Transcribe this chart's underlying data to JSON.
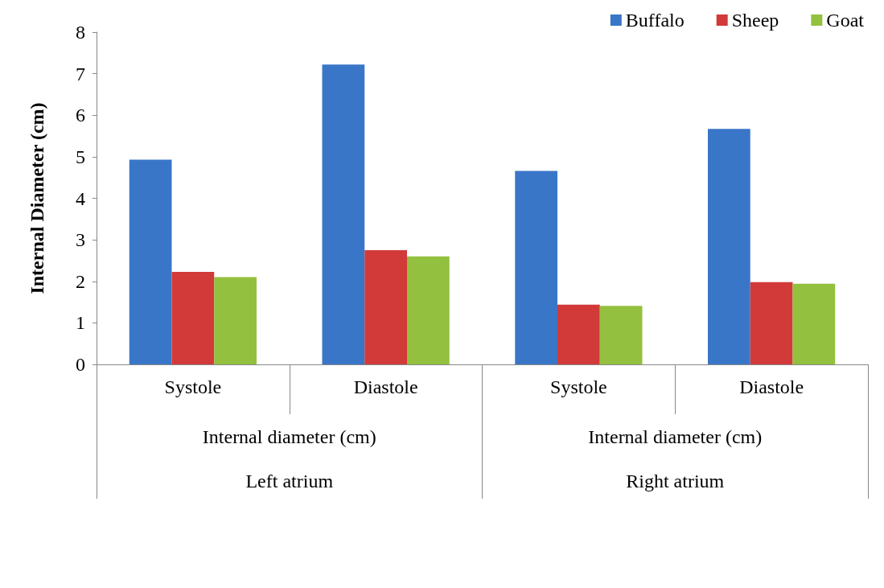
{
  "chart_data": {
    "type": "bar",
    "ylabel": "Internal Diameter (cm)",
    "categories": [
      "Systole",
      "Diastole",
      "Systole",
      "Diastole"
    ],
    "series": [
      {
        "name": "Buffalo",
        "color": "#3a76c8",
        "values": [
          4.93,
          7.22,
          4.66,
          5.67
        ]
      },
      {
        "name": "Sheep",
        "color": "#d23a3a",
        "values": [
          2.23,
          2.75,
          1.44,
          1.98
        ]
      },
      {
        "name": "Goat",
        "color": "#93c03e",
        "values": [
          2.1,
          2.6,
          1.41,
          1.94
        ]
      }
    ],
    "annotations": [
      "Internal diameter (cm)",
      "Internal diameter (cm)",
      "Left atrium",
      "Right atrium"
    ],
    "ylim": [
      0,
      8
    ],
    "yticks": [
      0,
      1,
      2,
      3,
      4,
      5,
      6,
      7,
      8
    ],
    "grid": false,
    "legend": "top right"
  }
}
